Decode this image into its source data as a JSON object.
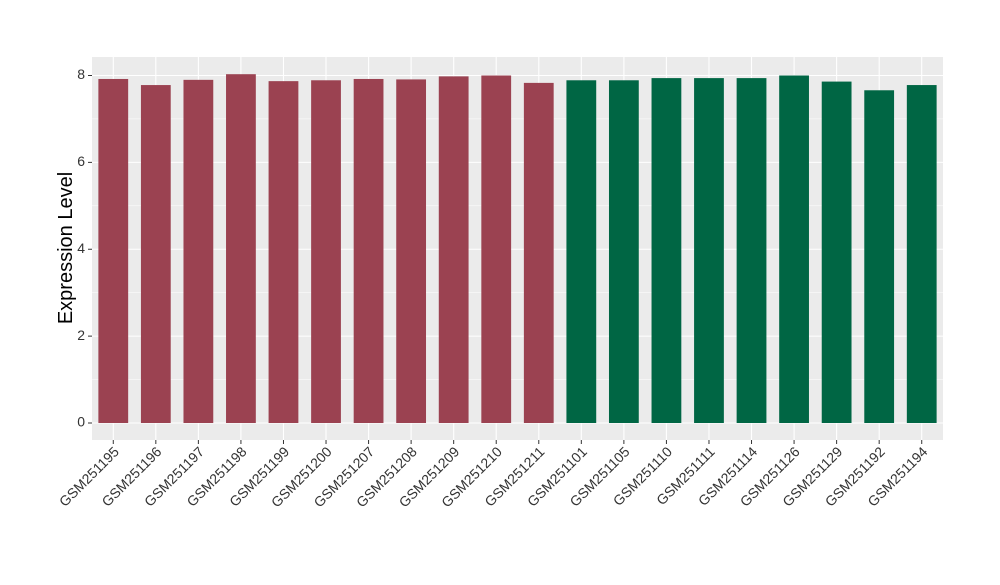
{
  "chart_data": {
    "type": "bar",
    "title": "",
    "xlabel": "",
    "ylabel": "Expression Level",
    "ylim": [
      0,
      8.3
    ],
    "yticks": [
      0,
      2,
      4,
      6,
      8
    ],
    "grid": true,
    "categories": [
      "GSM251195",
      "GSM251196",
      "GSM251197",
      "GSM251198",
      "GSM251199",
      "GSM251200",
      "GSM251207",
      "GSM251208",
      "GSM251209",
      "GSM251210",
      "GSM251211",
      "GSM251101",
      "GSM251105",
      "GSM251110",
      "GSM251111",
      "GSM251114",
      "GSM251126",
      "GSM251129",
      "GSM251192",
      "GSM251194"
    ],
    "values": [
      7.92,
      7.78,
      7.9,
      8.03,
      7.87,
      7.89,
      7.92,
      7.91,
      7.98,
      8.0,
      7.83,
      7.89,
      7.89,
      7.94,
      7.94,
      7.94,
      8.0,
      7.86,
      7.66,
      7.78
    ],
    "groups": [
      "A",
      "A",
      "A",
      "A",
      "A",
      "A",
      "A",
      "A",
      "A",
      "A",
      "A",
      "B",
      "B",
      "B",
      "B",
      "B",
      "B",
      "B",
      "B",
      "B"
    ],
    "colors": {
      "A": "#9b4251",
      "B": "#006644"
    },
    "panel_background": "#ebebeb",
    "grid_color": "#ffffff"
  }
}
